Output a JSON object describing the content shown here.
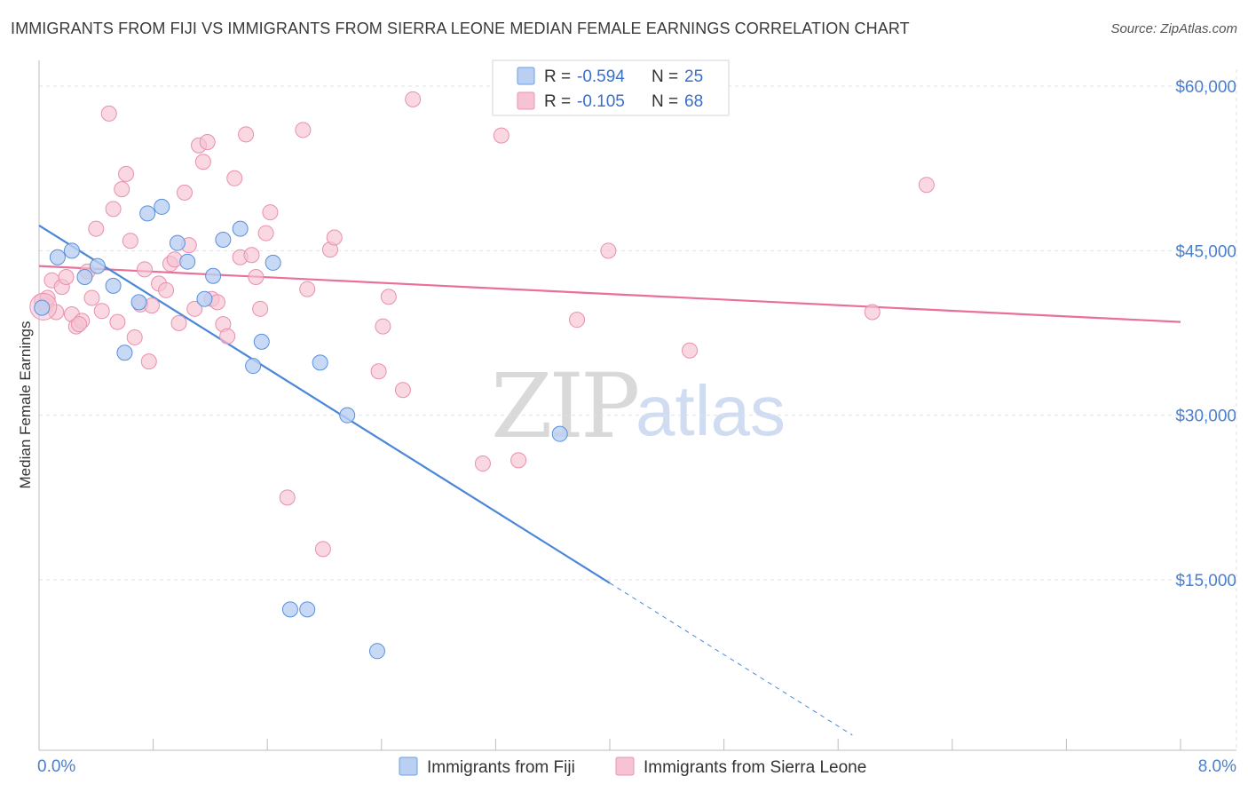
{
  "title": "IMMIGRANTS FROM FIJI VS IMMIGRANTS FROM SIERRA LEONE MEDIAN FEMALE EARNINGS CORRELATION CHART",
  "source": "Source: ZipAtlas.com",
  "watermark": {
    "zip": "ZIP",
    "atlas": "atlas"
  },
  "colors": {
    "fiji": "#4a87d8",
    "sierra_leone": "#e8709a",
    "fiji_fill": "#b9d0f3",
    "sierra_fill": "#f6c3d3",
    "axis_text": "#4a7fd0"
  },
  "stats_box": {
    "rows": [
      {
        "r_label": "R = ",
        "r_value": "-0.594",
        "n_label": "N = ",
        "n_value": "25"
      },
      {
        "r_label": "R = ",
        "r_value": "-0.105",
        "n_label": "N = ",
        "n_value": "68"
      }
    ]
  },
  "chart_data": {
    "type": "scatter",
    "xlabel": "",
    "ylabel": "Median Female Earnings",
    "xlim": [
      0,
      8
    ],
    "ylim": [
      0,
      61000
    ],
    "x_tick_labels": [
      "0.0%",
      "8.0%"
    ],
    "y_ticks": [
      15000,
      30000,
      45000,
      60000
    ],
    "y_tick_labels": [
      "$15,000",
      "$30,000",
      "$45,000",
      "$60,000"
    ],
    "grid": true,
    "legend_position": "bottom-center",
    "series": [
      {
        "name": "Immigrants from Fiji",
        "color": "#4a87d8",
        "points": [
          [
            0.02,
            39800
          ],
          [
            0.13,
            44400
          ],
          [
            0.23,
            45000
          ],
          [
            0.32,
            42600
          ],
          [
            0.41,
            43600
          ],
          [
            0.52,
            41800
          ],
          [
            0.6,
            35700
          ],
          [
            0.7,
            40300
          ],
          [
            0.76,
            48400
          ],
          [
            0.86,
            49000
          ],
          [
            0.97,
            45700
          ],
          [
            1.04,
            44000
          ],
          [
            1.16,
            40600
          ],
          [
            1.22,
            42700
          ],
          [
            1.29,
            46000
          ],
          [
            1.41,
            47000
          ],
          [
            1.5,
            34500
          ],
          [
            1.56,
            36700
          ],
          [
            1.64,
            43900
          ],
          [
            1.76,
            12300
          ],
          [
            1.88,
            12300
          ],
          [
            1.97,
            34800
          ],
          [
            2.16,
            30000
          ],
          [
            2.37,
            8500
          ],
          [
            3.65,
            28300
          ]
        ],
        "trend": {
          "x0": 0.0,
          "y0": 47300,
          "x1": 4.0,
          "y1": 14700,
          "dash_to_x": 5.7
        }
      },
      {
        "name": "Immigrants from Sierra Leone",
        "color": "#e8709a",
        "points": [
          [
            0.02,
            40400
          ],
          [
            0.05,
            40000
          ],
          [
            0.09,
            42300
          ],
          [
            0.12,
            39400
          ],
          [
            0.16,
            41700
          ],
          [
            0.19,
            42600
          ],
          [
            0.23,
            39200
          ],
          [
            0.26,
            38100
          ],
          [
            0.3,
            38600
          ],
          [
            0.34,
            43100
          ],
          [
            0.37,
            40700
          ],
          [
            0.4,
            47000
          ],
          [
            0.44,
            39500
          ],
          [
            0.49,
            57500
          ],
          [
            0.52,
            48800
          ],
          [
            0.55,
            38500
          ],
          [
            0.58,
            50600
          ],
          [
            0.61,
            52000
          ],
          [
            0.64,
            45900
          ],
          [
            0.67,
            37100
          ],
          [
            0.71,
            40100
          ],
          [
            0.74,
            43300
          ],
          [
            0.77,
            34900
          ],
          [
            0.79,
            40000
          ],
          [
            0.84,
            42000
          ],
          [
            0.89,
            41400
          ],
          [
            0.92,
            43800
          ],
          [
            0.95,
            44200
          ],
          [
            0.98,
            38400
          ],
          [
            1.02,
            50300
          ],
          [
            1.05,
            45500
          ],
          [
            1.09,
            39700
          ],
          [
            1.12,
            54600
          ],
          [
            1.15,
            53100
          ],
          [
            1.18,
            54900
          ],
          [
            1.21,
            40600
          ],
          [
            1.25,
            40300
          ],
          [
            1.29,
            38300
          ],
          [
            1.32,
            37200
          ],
          [
            1.37,
            51600
          ],
          [
            1.41,
            44400
          ],
          [
            1.45,
            55600
          ],
          [
            1.49,
            44600
          ],
          [
            1.52,
            42600
          ],
          [
            1.55,
            39700
          ],
          [
            1.59,
            46600
          ],
          [
            1.62,
            48500
          ],
          [
            1.74,
            22500
          ],
          [
            1.85,
            56000
          ],
          [
            1.88,
            41500
          ],
          [
            1.99,
            17800
          ],
          [
            2.04,
            45100
          ],
          [
            2.07,
            46200
          ],
          [
            2.38,
            34000
          ],
          [
            2.41,
            38100
          ],
          [
            2.45,
            40800
          ],
          [
            2.55,
            32300
          ],
          [
            2.62,
            58800
          ],
          [
            3.11,
            25600
          ],
          [
            3.24,
            55500
          ],
          [
            3.36,
            25900
          ],
          [
            3.77,
            38700
          ],
          [
            3.99,
            45000
          ],
          [
            4.56,
            35900
          ],
          [
            5.84,
            39400
          ],
          [
            6.22,
            51000
          ],
          [
            0.28,
            38300
          ],
          [
            0.06,
            40700
          ]
        ],
        "trend": {
          "x0": 0.0,
          "y0": 43600,
          "x1": 8.0,
          "y1": 38500
        }
      }
    ]
  }
}
